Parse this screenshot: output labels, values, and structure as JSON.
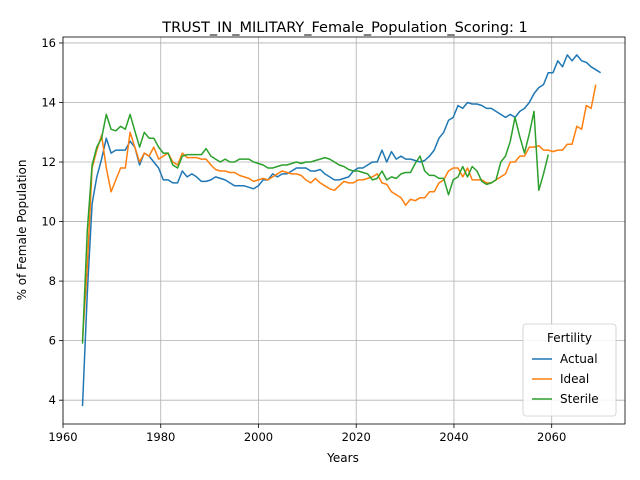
{
  "chart_data": {
    "type": "line",
    "title": "TRUST_IN_MILITARY_Female_Population_Scoring: 1",
    "xlabel": "Years",
    "ylabel": "% of Female Population",
    "xlim": [
      1960,
      2075
    ],
    "ylim": [
      3.2,
      16.2
    ],
    "xticks": [
      1960,
      1980,
      2000,
      2020,
      2040,
      2060
    ],
    "yticks": [
      4,
      6,
      8,
      10,
      12,
      14,
      16
    ],
    "grid": true,
    "legend": {
      "title": "Fertility",
      "position": "lower-right"
    },
    "x_start": 1964,
    "x_end": 2070,
    "series": [
      {
        "name": "Actual",
        "color": "#1f77b4",
        "values": [
          3.8,
          7.6,
          10.6,
          11.5,
          12.1,
          12.8,
          12.3,
          12.4,
          12.4,
          12.4,
          12.7,
          12.5,
          11.9,
          12.3,
          12.2,
          12.0,
          11.8,
          11.4,
          11.4,
          11.3,
          11.3,
          11.7,
          11.5,
          11.6,
          11.5,
          11.35,
          11.35,
          11.4,
          11.5,
          11.45,
          11.4,
          11.3,
          11.2,
          11.2,
          11.2,
          11.15,
          11.1,
          11.2,
          11.4,
          11.4,
          11.6,
          11.5,
          11.6,
          11.6,
          11.7,
          11.8,
          11.8,
          11.8,
          11.7,
          11.7,
          11.75,
          11.6,
          11.5,
          11.4,
          11.4,
          11.45,
          11.5,
          11.7,
          11.8,
          11.8,
          11.9,
          12.0,
          12.0,
          12.4,
          12.0,
          12.35,
          12.1,
          12.2,
          12.1,
          12.1,
          12.05,
          12.0,
          12.05,
          12.2,
          12.4,
          12.8,
          13.0,
          13.4,
          13.5,
          13.9,
          13.8,
          14.0,
          13.95,
          13.95,
          13.9,
          13.8,
          13.8,
          13.7,
          13.6,
          13.5,
          13.6,
          13.5,
          13.7,
          13.8,
          14.0,
          14.3,
          14.5,
          14.6,
          15.0,
          15.0,
          15.4,
          15.2,
          15.6,
          15.4,
          15.6,
          15.4,
          15.35,
          15.2,
          15.1,
          15.0
        ]
      },
      {
        "name": "Ideal",
        "color": "#ff7f0e",
        "values": [
          6.0,
          8.5,
          11.8,
          12.4,
          12.9,
          11.8,
          11.0,
          11.4,
          11.8,
          11.8,
          13.0,
          12.5,
          12.0,
          12.3,
          12.2,
          12.5,
          12.1,
          12.2,
          12.3,
          12.0,
          11.9,
          12.3,
          12.15,
          12.15,
          12.15,
          12.1,
          12.1,
          11.9,
          11.75,
          11.7,
          11.7,
          11.65,
          11.65,
          11.55,
          11.5,
          11.45,
          11.35,
          11.4,
          11.45,
          11.4,
          11.5,
          11.6,
          11.7,
          11.65,
          11.6,
          11.6,
          11.55,
          11.4,
          11.3,
          11.45,
          11.3,
          11.2,
          11.1,
          11.05,
          11.2,
          11.35,
          11.3,
          11.3,
          11.4,
          11.4,
          11.45,
          11.5,
          11.6,
          11.3,
          11.25,
          11.0,
          10.9,
          10.8,
          10.55,
          10.75,
          10.7,
          10.8,
          10.8,
          11.0,
          11.0,
          11.3,
          11.4,
          11.7,
          11.8,
          11.8,
          11.5,
          11.8,
          11.4,
          11.4,
          11.4,
          11.3,
          11.3,
          11.4,
          11.5,
          11.6,
          12.0,
          12.0,
          12.2,
          12.2,
          12.5,
          12.5,
          12.55,
          12.4,
          12.4,
          12.35,
          12.4,
          12.4,
          12.6,
          12.6,
          13.2,
          13.1,
          13.9,
          13.8,
          14.6
        ]
      },
      {
        "name": "Sterile",
        "color": "#2ca02c",
        "values": [
          5.9,
          9.7,
          11.9,
          12.5,
          12.8,
          13.6,
          13.1,
          13.05,
          13.2,
          13.1,
          13.6,
          13.05,
          12.5,
          13.0,
          12.8,
          12.8,
          12.5,
          12.3,
          12.3,
          11.9,
          11.8,
          12.2,
          12.25,
          12.25,
          12.25,
          12.25,
          12.45,
          12.2,
          12.1,
          12.0,
          12.1,
          12.0,
          12.0,
          12.1,
          12.1,
          12.1,
          12.0,
          11.95,
          11.9,
          11.8,
          11.8,
          11.85,
          11.9,
          11.9,
          11.95,
          12.0,
          11.95,
          12.0,
          12.0,
          12.05,
          12.1,
          12.15,
          12.1,
          12.0,
          11.9,
          11.85,
          11.75,
          11.7,
          11.7,
          11.65,
          11.6,
          11.4,
          11.45,
          11.7,
          11.4,
          11.5,
          11.45,
          11.6,
          11.65,
          11.65,
          11.95,
          12.2,
          11.7,
          11.55,
          11.55,
          11.45,
          11.45,
          10.9,
          11.4,
          11.5,
          11.85,
          11.5,
          11.85,
          11.7,
          11.35,
          11.25,
          11.3,
          11.4,
          12.0,
          12.2,
          12.7,
          13.5,
          12.85,
          12.3,
          12.95,
          13.7,
          11.05,
          11.6,
          12.25
        ]
      }
    ]
  }
}
